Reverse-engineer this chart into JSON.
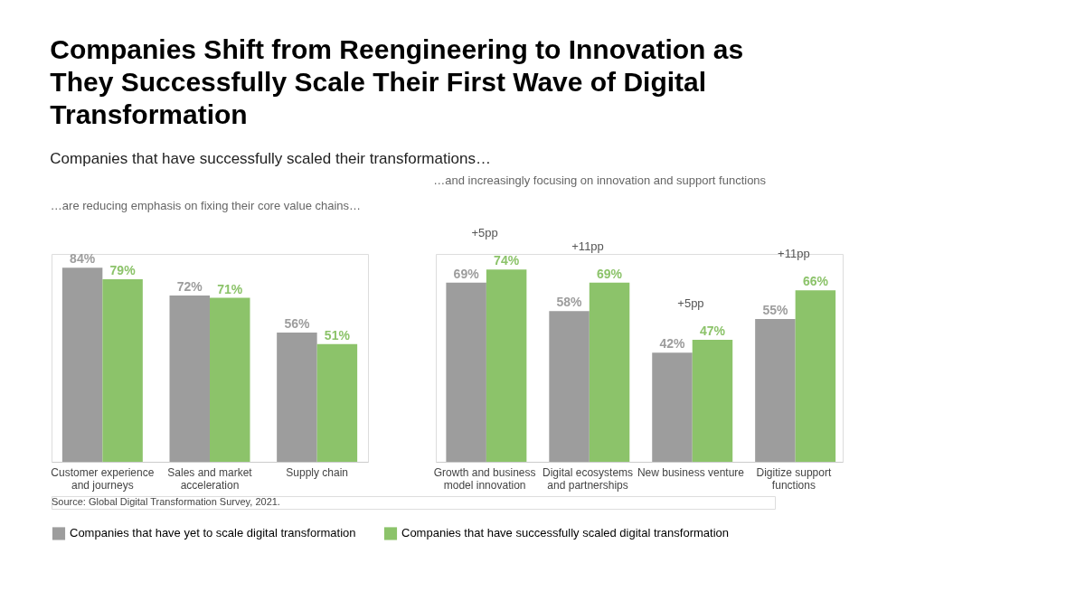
{
  "chart_data": [
    {
      "type": "bar",
      "title": "Companies Shift from Reengineering to Innovation as They Successfully Scale Their First Wave of Digital Transformation",
      "subtitle": "Companies that have successfully scaled their transformations…",
      "annotations": [
        "…are reducing emphasis on fixing their core value chains…",
        "Source: Global Digital Transformation Survey, 2021."
      ],
      "categories": [
        "Customer experience and journeys",
        "Sales and market acceleration",
        "Supply chain"
      ],
      "series": [
        {
          "name": "Companies that have yet to scale digital transformation",
          "color": "#9d9d9d",
          "values": [
            84,
            72,
            56
          ],
          "value_labels": [
            "84%",
            "72%",
            "56%"
          ]
        },
        {
          "name": "Companies that have successfully scaled digital transformation",
          "color": "#8cc36a",
          "values": [
            79,
            71,
            51
          ],
          "value_labels": [
            "79%",
            "71%",
            "51%"
          ]
        }
      ],
      "legend": "bottom",
      "tick_labels": "x",
      "grid": false
    },
    {
      "type": "bar",
      "title": "…and increasingly focusing on innovation and support functions",
      "annotations": [
        {
          "text": "+5pp",
          "x": "Growth and business model innovation",
          "y": 74
        },
        {
          "text": "+11pp",
          "x": "Digital ecosystems and partnerships",
          "y": 69
        },
        {
          "text": "+5pp",
          "x": "New business venture",
          "y": 47
        },
        {
          "text": "+11pp",
          "x": "Digitize support functions",
          "y": 66
        }
      ],
      "categories": [
        "Growth and business model innovation",
        "Digital ecosystems and partnerships",
        "New business venture",
        "Digitize support functions"
      ],
      "series": [
        {
          "name": "Companies that have yet to scale digital transformation",
          "color": "#9d9d9d",
          "values": [
            69,
            58,
            42,
            55
          ],
          "value_labels": [
            "69%",
            "58%",
            "42%",
            "55%"
          ]
        },
        {
          "name": "Companies that have successfully scaled digital transformation",
          "color": "#8cc36a",
          "values": [
            74,
            69,
            47,
            66
          ],
          "value_labels": [
            "74%",
            "69%",
            "47%",
            "66%"
          ]
        }
      ],
      "legend": "bottom",
      "tick_labels": "x",
      "grid": false
    }
  ]
}
